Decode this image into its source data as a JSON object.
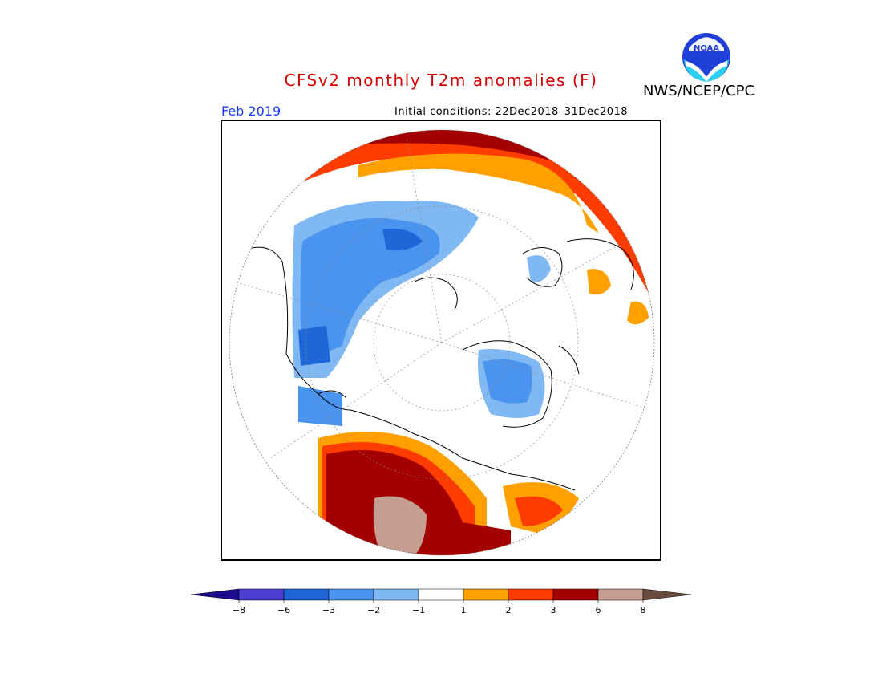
{
  "header": {
    "title": "CFSv2 monthly T2m anomalies (F)",
    "agency": "NWS/NCEP/CPC",
    "period": "Feb 2019",
    "initial_conditions": "Initial conditions: 22Dec2018–31Dec2018",
    "logo_text": "NOAA"
  },
  "colors": {
    "title": "#d60000",
    "period": "#1a3cff",
    "ocean_fill": "#ffffff",
    "land_outline": "#000000"
  },
  "colorbar": {
    "bins": [
      {
        "color": "#1c0d8f",
        "label": "<-8"
      },
      {
        "color": "#4b3fd0",
        "label": "-8 to -6"
      },
      {
        "color": "#1f66d9",
        "label": "-6 to -3"
      },
      {
        "color": "#4a93ee",
        "label": "-3 to -2"
      },
      {
        "color": "#80b8f3",
        "label": "-2 to -1"
      },
      {
        "color": "#ffffff",
        "label": "-1 to 1"
      },
      {
        "color": "#ff9f00",
        "label": "1 to 2"
      },
      {
        "color": "#ff3c00",
        "label": "2 to 3"
      },
      {
        "color": "#a50000",
        "label": "3 to 6"
      },
      {
        "color": "#c49e92",
        "label": "6 to 8"
      },
      {
        "color": "#6b4a3e",
        "label": ">8"
      }
    ],
    "tick_labels": [
      "−8",
      "−6",
      "−3",
      "−2",
      "−1",
      "1",
      "2",
      "3",
      "6",
      "8"
    ]
  }
}
